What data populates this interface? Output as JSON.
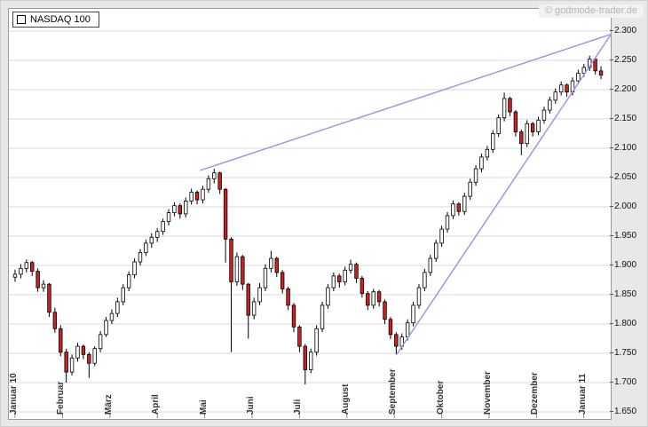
{
  "watermark": "© godmode-trader.de",
  "legend": {
    "label": "NASDAQ 100"
  },
  "chart_data": {
    "type": "candlestick",
    "title": "NASDAQ 100",
    "x_axis": {
      "labels": [
        "Januar 10",
        "Februar",
        "März",
        "April",
        "Mai",
        "Juni",
        "Juli",
        "August",
        "September",
        "Oktober",
        "November",
        "Dezember",
        "Januar 11"
      ],
      "month_positions": [
        0,
        1,
        2,
        3,
        4,
        5,
        6,
        7,
        8,
        9,
        10,
        11,
        12
      ]
    },
    "y_axis": {
      "min": 1.65,
      "max": 2.3,
      "step": 0.05,
      "tick_labels": [
        "1.650",
        "1.700",
        "1.750",
        "1.800",
        "1.850",
        "1.900",
        "1.950",
        "2.000",
        "2.050",
        "2.100",
        "2.150",
        "2.200",
        "2.250",
        "2.300"
      ]
    },
    "grid": "horizontal",
    "legend_position": "top-left",
    "candles_format": [
      "x_month",
      "open",
      "high",
      "low",
      "close"
    ],
    "candles": [
      [
        0.0,
        1.88,
        1.893,
        1.872,
        1.885
      ],
      [
        0.12,
        1.885,
        1.902,
        1.878,
        1.895
      ],
      [
        0.24,
        1.895,
        1.91,
        1.888,
        1.905
      ],
      [
        0.36,
        1.905,
        1.908,
        1.882,
        1.89
      ],
      [
        0.48,
        1.89,
        1.895,
        1.855,
        1.862
      ],
      [
        0.6,
        1.862,
        1.875,
        1.855,
        1.868
      ],
      [
        0.72,
        1.868,
        1.87,
        1.812,
        1.82
      ],
      [
        0.84,
        1.82,
        1.828,
        1.785,
        1.792
      ],
      [
        0.96,
        1.792,
        1.798,
        1.745,
        1.752
      ],
      [
        1.08,
        1.752,
        1.758,
        1.7,
        1.718
      ],
      [
        1.2,
        1.718,
        1.748,
        1.712,
        1.742
      ],
      [
        1.32,
        1.742,
        1.768,
        1.736,
        1.762
      ],
      [
        1.44,
        1.762,
        1.765,
        1.74,
        1.748
      ],
      [
        1.56,
        1.748,
        1.752,
        1.708,
        1.733
      ],
      [
        1.68,
        1.733,
        1.762,
        1.728,
        1.758
      ],
      [
        1.8,
        1.758,
        1.788,
        1.752,
        1.782
      ],
      [
        1.92,
        1.782,
        1.812,
        1.778,
        1.806
      ],
      [
        2.04,
        1.806,
        1.825,
        1.8,
        1.818
      ],
      [
        2.16,
        1.818,
        1.845,
        1.812,
        1.838
      ],
      [
        2.28,
        1.838,
        1.868,
        1.832,
        1.862
      ],
      [
        2.4,
        1.862,
        1.89,
        1.856,
        1.884
      ],
      [
        2.52,
        1.884,
        1.912,
        1.878,
        1.906
      ],
      [
        2.64,
        1.906,
        1.928,
        1.9,
        1.922
      ],
      [
        2.76,
        1.922,
        1.944,
        1.916,
        1.938
      ],
      [
        2.88,
        1.938,
        1.955,
        1.93,
        1.948
      ],
      [
        3.0,
        1.948,
        1.964,
        1.94,
        1.958
      ],
      [
        3.12,
        1.958,
        1.98,
        1.952,
        1.975
      ],
      [
        3.24,
        1.975,
        1.996,
        1.968,
        1.99
      ],
      [
        3.36,
        1.99,
        2.008,
        1.984,
        2.002
      ],
      [
        3.48,
        2.002,
        2.006,
        1.98,
        1.988
      ],
      [
        3.6,
        1.988,
        2.016,
        1.982,
        2.01
      ],
      [
        3.72,
        2.01,
        2.031,
        2.004,
        2.025
      ],
      [
        3.84,
        2.025,
        2.028,
        2.004,
        2.012
      ],
      [
        3.96,
        2.012,
        2.036,
        2.006,
        2.03
      ],
      [
        4.08,
        2.03,
        2.054,
        2.024,
        2.048
      ],
      [
        4.2,
        2.048,
        2.065,
        2.04,
        2.058
      ],
      [
        4.32,
        2.058,
        2.06,
        2.022,
        2.03
      ],
      [
        4.44,
        2.03,
        2.032,
        1.905,
        1.945
      ],
      [
        4.56,
        1.945,
        1.948,
        1.752,
        1.872
      ],
      [
        4.68,
        1.872,
        1.922,
        1.865,
        1.915
      ],
      [
        4.8,
        1.915,
        1.918,
        1.858,
        1.868
      ],
      [
        4.92,
        1.868,
        1.87,
        1.775,
        1.815
      ],
      [
        5.04,
        1.815,
        1.845,
        1.808,
        1.838
      ],
      [
        5.16,
        1.838,
        1.87,
        1.832,
        1.862
      ],
      [
        5.28,
        1.862,
        1.902,
        1.856,
        1.895
      ],
      [
        5.4,
        1.895,
        1.925,
        1.888,
        1.912
      ],
      [
        5.52,
        1.912,
        1.915,
        1.88,
        1.888
      ],
      [
        5.64,
        1.888,
        1.892,
        1.852,
        1.86
      ],
      [
        5.76,
        1.86,
        1.864,
        1.824,
        1.832
      ],
      [
        5.88,
        1.832,
        1.836,
        1.786,
        1.795
      ],
      [
        6.0,
        1.795,
        1.798,
        1.752,
        1.762
      ],
      [
        6.12,
        1.762,
        1.766,
        1.697,
        1.722
      ],
      [
        6.24,
        1.722,
        1.758,
        1.716,
        1.752
      ],
      [
        6.36,
        1.752,
        1.798,
        1.746,
        1.792
      ],
      [
        6.48,
        1.792,
        1.838,
        1.786,
        1.832
      ],
      [
        6.6,
        1.832,
        1.868,
        1.826,
        1.862
      ],
      [
        6.72,
        1.862,
        1.888,
        1.856,
        1.882
      ],
      [
        6.84,
        1.882,
        1.886,
        1.862,
        1.872
      ],
      [
        6.96,
        1.872,
        1.898,
        1.866,
        1.892
      ],
      [
        7.08,
        1.892,
        1.91,
        1.886,
        1.902
      ],
      [
        7.2,
        1.902,
        1.905,
        1.87,
        1.878
      ],
      [
        7.32,
        1.878,
        1.882,
        1.845,
        1.852
      ],
      [
        7.44,
        1.852,
        1.856,
        1.824,
        1.832
      ],
      [
        7.56,
        1.832,
        1.86,
        1.826,
        1.855
      ],
      [
        7.68,
        1.855,
        1.858,
        1.83,
        1.838
      ],
      [
        7.8,
        1.838,
        1.842,
        1.8,
        1.808
      ],
      [
        7.92,
        1.808,
        1.812,
        1.774,
        1.782
      ],
      [
        8.04,
        1.782,
        1.786,
        1.748,
        1.762
      ],
      [
        8.16,
        1.762,
        1.784,
        1.756,
        1.778
      ],
      [
        8.28,
        1.778,
        1.808,
        1.772,
        1.802
      ],
      [
        8.4,
        1.802,
        1.838,
        1.796,
        1.832
      ],
      [
        8.52,
        1.832,
        1.868,
        1.826,
        1.862
      ],
      [
        8.64,
        1.862,
        1.894,
        1.856,
        1.888
      ],
      [
        8.76,
        1.888,
        1.918,
        1.882,
        1.912
      ],
      [
        8.88,
        1.912,
        1.944,
        1.906,
        1.938
      ],
      [
        9.0,
        1.938,
        1.968,
        1.932,
        1.962
      ],
      [
        9.12,
        1.962,
        1.991,
        1.956,
        1.985
      ],
      [
        9.24,
        1.985,
        2.011,
        1.979,
        2.005
      ],
      [
        9.36,
        2.005,
        2.008,
        1.985,
        1.992
      ],
      [
        9.48,
        1.992,
        2.024,
        1.986,
        2.018
      ],
      [
        9.6,
        2.018,
        2.048,
        2.012,
        2.042
      ],
      [
        9.72,
        2.042,
        2.071,
        2.036,
        2.065
      ],
      [
        9.84,
        2.065,
        2.091,
        2.059,
        2.085
      ],
      [
        9.96,
        2.085,
        2.104,
        2.079,
        2.098
      ],
      [
        10.08,
        2.098,
        2.131,
        2.092,
        2.125
      ],
      [
        10.2,
        2.125,
        2.158,
        2.119,
        2.152
      ],
      [
        10.32,
        2.152,
        2.195,
        2.146,
        2.185
      ],
      [
        10.44,
        2.185,
        2.188,
        2.155,
        2.162
      ],
      [
        10.56,
        2.162,
        2.165,
        2.12,
        2.128
      ],
      [
        10.68,
        2.128,
        2.132,
        2.088,
        2.108
      ],
      [
        10.8,
        2.108,
        2.148,
        2.102,
        2.142
      ],
      [
        10.92,
        2.142,
        2.145,
        2.12,
        2.128
      ],
      [
        11.04,
        2.128,
        2.154,
        2.122,
        2.148
      ],
      [
        11.16,
        2.148,
        2.171,
        2.142,
        2.165
      ],
      [
        11.28,
        2.165,
        2.188,
        2.159,
        2.182
      ],
      [
        11.4,
        2.182,
        2.202,
        2.176,
        2.196
      ],
      [
        11.52,
        2.196,
        2.214,
        2.19,
        2.208
      ],
      [
        11.64,
        2.208,
        2.211,
        2.188,
        2.196
      ],
      [
        11.76,
        2.196,
        2.221,
        2.19,
        2.215
      ],
      [
        11.88,
        2.215,
        2.234,
        2.209,
        2.228
      ],
      [
        12.0,
        2.228,
        2.244,
        2.222,
        2.238
      ],
      [
        12.12,
        2.238,
        2.258,
        2.232,
        2.252
      ],
      [
        12.24,
        2.252,
        2.255,
        2.226,
        2.232
      ],
      [
        12.36,
        2.232,
        2.24,
        2.218,
        2.225
      ]
    ],
    "trendlines": [
      {
        "name": "upper-resistance-line",
        "from": [
          3.9,
          2.062
        ],
        "to": [
          12.7,
          2.298
        ]
      },
      {
        "name": "lower-support-line",
        "from": [
          8.05,
          1.748
        ],
        "to": [
          12.7,
          2.31
        ]
      }
    ],
    "colors": {
      "bull": "#ffffff",
      "bear": "#cc2222",
      "outline": "#000000",
      "trendline": "#9999ee",
      "grid": "#d8d8d8",
      "plot_bg": "#ffffff",
      "outer_bg": "#e8e8e8"
    }
  }
}
